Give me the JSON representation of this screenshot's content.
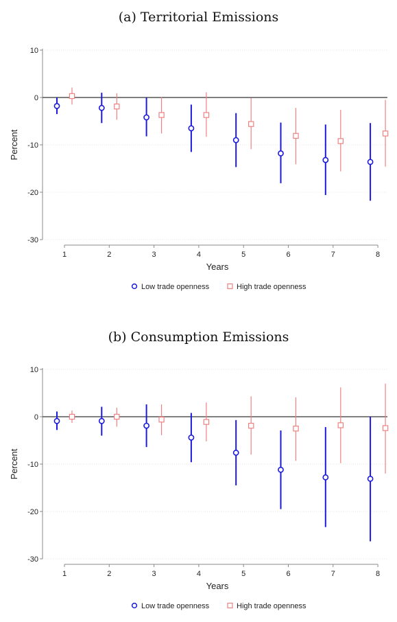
{
  "colors": {
    "low": "#1a1adc",
    "high": "#f08080",
    "zero": "#555555",
    "grid": "#dddddd",
    "axis": "#888888"
  },
  "legend": {
    "low": "Low trade openness",
    "high": "High trade openness"
  },
  "chart_data": [
    {
      "type": "scatter",
      "title": "(a) Territorial Emissions",
      "xlabel": "Years",
      "ylabel": "Percent",
      "x": [
        1,
        2,
        3,
        4,
        5,
        6,
        7,
        8
      ],
      "xticks": [
        "1",
        "2",
        "3",
        "4",
        "5",
        "6",
        "7",
        "8"
      ],
      "yticks": [
        "10",
        "0",
        "-10",
        "-20",
        "-30"
      ],
      "ylim": [
        -30,
        10
      ],
      "legend_position": "bottom",
      "grid": true,
      "series": [
        {
          "name": "Low trade openness",
          "marker": "circle",
          "values": [
            -1.8,
            -2.2,
            -4.2,
            -6.5,
            -9.0,
            -11.8,
            -13.2,
            -13.6
          ],
          "ci_low": [
            -3.5,
            -5.4,
            -8.2,
            -11.5,
            -14.7,
            -18.1,
            -20.6,
            -21.8
          ],
          "ci_high": [
            0.0,
            1.0,
            0.0,
            -1.5,
            -3.3,
            -5.3,
            -5.7,
            -5.4
          ]
        },
        {
          "name": "High trade openness",
          "marker": "square",
          "values": [
            0.3,
            -1.9,
            -3.7,
            -3.7,
            -5.6,
            -8.1,
            -9.2,
            -7.6
          ],
          "ci_low": [
            -1.5,
            -4.7,
            -7.6,
            -8.3,
            -10.9,
            -14.1,
            -15.6,
            -14.6
          ],
          "ci_high": [
            2.1,
            0.9,
            0.1,
            1.1,
            -0.1,
            -2.2,
            -2.6,
            -0.5
          ]
        }
      ]
    },
    {
      "type": "scatter",
      "title": "(b) Consumption Emissions",
      "xlabel": "Years",
      "ylabel": "Percent",
      "x": [
        1,
        2,
        3,
        4,
        5,
        6,
        7,
        8
      ],
      "xticks": [
        "1",
        "2",
        "3",
        "4",
        "5",
        "6",
        "7",
        "8"
      ],
      "yticks": [
        "10",
        "0",
        "-10",
        "-20",
        "-30"
      ],
      "ylim": [
        -30,
        10
      ],
      "legend_position": "bottom",
      "grid": true,
      "series": [
        {
          "name": "Low trade openness",
          "marker": "circle",
          "values": [
            -0.9,
            -0.9,
            -1.9,
            -4.4,
            -7.6,
            -11.2,
            -12.8,
            -13.1
          ],
          "ci_low": [
            -2.8,
            -4.0,
            -6.4,
            -9.6,
            -14.5,
            -19.5,
            -23.3,
            -26.3
          ],
          "ci_high": [
            1.1,
            2.1,
            2.6,
            0.8,
            -0.7,
            -2.9,
            -2.2,
            0.0
          ]
        },
        {
          "name": "High trade openness",
          "marker": "square",
          "values": [
            0.0,
            0.0,
            -0.6,
            -1.1,
            -1.9,
            -2.5,
            -1.8,
            -2.4
          ],
          "ci_low": [
            -1.3,
            -2.1,
            -3.9,
            -5.2,
            -8.0,
            -9.3,
            -9.8,
            -12.0
          ],
          "ci_high": [
            1.3,
            1.9,
            2.6,
            3.0,
            4.3,
            4.1,
            6.2,
            7.0
          ]
        }
      ]
    }
  ]
}
